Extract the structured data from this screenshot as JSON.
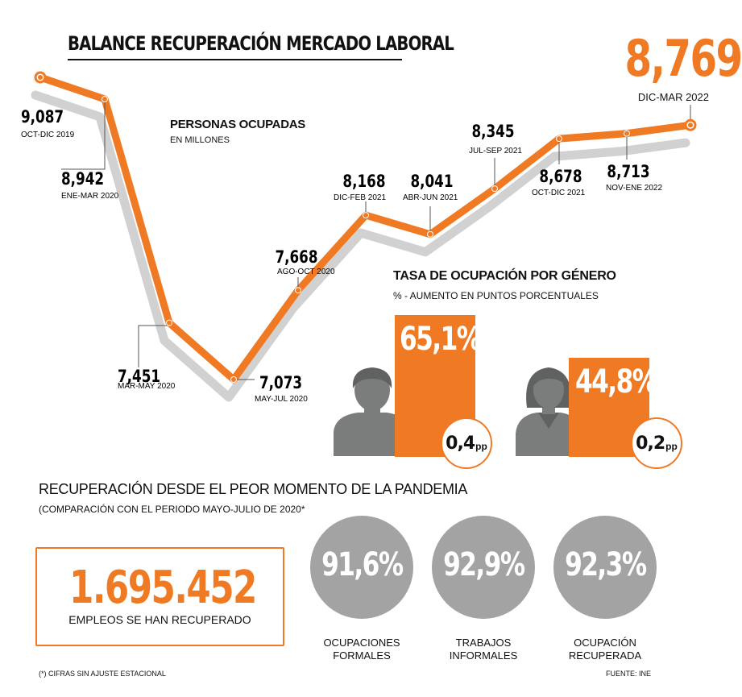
{
  "title": "BALANCE RECUPERACIÓN MERCADO LABORAL",
  "latest": {
    "value": "8,769",
    "period": "DIC-MAR 2022"
  },
  "chart_subtitle": "PERSONAS OCUPADAS",
  "chart_unit": "EN MILLONES",
  "chart_data": {
    "type": "line",
    "title": "PERSONAS OCUPADAS",
    "ylabel": "EN MILLONES",
    "x": [
      "OCT-DIC 2019",
      "ENE-MAR 2020",
      "MAR-MAY 2020",
      "MAY-JUL 2020",
      "AGO-OCT 2020",
      "DIC-FEB 2021",
      "ABR-JUN 2021",
      "JUL-SEP 2021",
      "OCT-DIC 2021",
      "NOV-ENE 2022",
      "DIC-MAR 2022"
    ],
    "y": [
      9.087,
      8.942,
      7.451,
      7.073,
      7.668,
      8.168,
      8.041,
      8.345,
      8.678,
      8.713,
      8.769
    ],
    "labels": [
      "9,087",
      "8,942",
      "7,451",
      "7,073",
      "7,668",
      "8,168",
      "8,041",
      "8,345",
      "8,678",
      "8,713",
      "8,769"
    ],
    "color": "#f07a23",
    "grid": false
  },
  "gender": {
    "title": "TASA DE OCUPACIÓN POR GÉNERO",
    "subtitle": "% -  AUMENTO EN PUNTOS PORCENTUALES",
    "men": {
      "rate": "65,1%",
      "increase": "0,4",
      "unit": "pp",
      "rate_value": 65.1
    },
    "women": {
      "rate": "44,8%",
      "increase": "0,2",
      "unit": "pp",
      "rate_value": 44.8
    },
    "icons": [
      "man-icon",
      "woman-icon"
    ],
    "accent": "#f07a23"
  },
  "recovery": {
    "title": "RECUPERACIÓN DESDE EL PEOR MOMENTO DE LA PANDEMIA",
    "subtitle": "(COMPARACIÓN CON EL PERIODO MAYO-JULIO DE 2020*",
    "jobs_value": "1.695.452",
    "jobs_label": "EMPLEOS SE HAN RECUPERADO",
    "circles": [
      {
        "value": "91,6%",
        "label1": "OCUPACIONES",
        "label2": "FORMALES"
      },
      {
        "value": "92,9%",
        "label1": "TRABAJOS",
        "label2": "INFORMALES"
      },
      {
        "value": "92,3%",
        "label1": "OCUPACIÓN",
        "label2": "RECUPERADA"
      }
    ],
    "circle_color": "#a3a3a3"
  },
  "footnote": "(*) CIFRAS SIN AJUSTE ESTACIONAL",
  "source": "FUENTE: INE"
}
